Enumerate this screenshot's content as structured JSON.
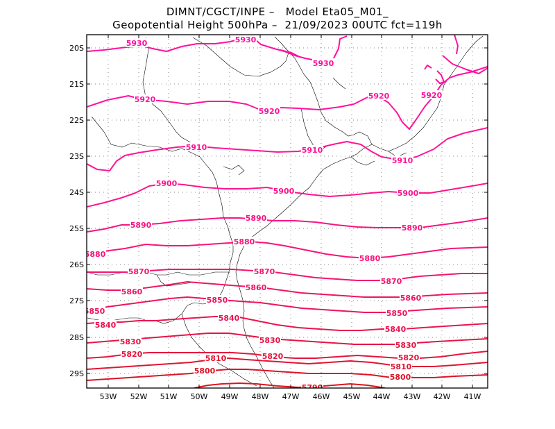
{
  "header": {
    "line1": "DIMNT/CGCT/INPE –   Model Eta05_M01_",
    "line2": "Geopotential Height 500hPa –  21/09/2023 00UTC fct=119h"
  },
  "axes": {
    "lat_labels": [
      "20S",
      "21S",
      "22S",
      "23S",
      "24S",
      "25S",
      "26S",
      "27S",
      "28S",
      "29S"
    ],
    "lon_labels": [
      "53W",
      "52W",
      "51W",
      "50W",
      "49W",
      "48W",
      "47W",
      "46W",
      "45W",
      "44W",
      "43W",
      "42W",
      "41W"
    ]
  },
  "contours": [
    {
      "value": 5930,
      "label": "5930",
      "color": "#ff0fa0"
    },
    {
      "value": 5920,
      "label": "5920",
      "color": "#ff12a0"
    },
    {
      "value": 5910,
      "label": "5910",
      "color": "#ff1496"
    },
    {
      "value": 5900,
      "label": "5900",
      "color": "#ff148c"
    },
    {
      "value": 5890,
      "label": "5890",
      "color": "#f81482"
    },
    {
      "value": 5880,
      "label": "5880",
      "color": "#f81478"
    },
    {
      "value": 5870,
      "label": "5870",
      "color": "#f5146e"
    },
    {
      "value": 5860,
      "label": "5860",
      "color": "#f01464"
    },
    {
      "value": 5850,
      "label": "5850",
      "color": "#f0145a"
    },
    {
      "value": 5840,
      "label": "5840",
      "color": "#eb1450"
    },
    {
      "value": 5830,
      "label": "5830",
      "color": "#e61446"
    },
    {
      "value": 5820,
      "label": "5820",
      "color": "#e6143c"
    },
    {
      "value": 5810,
      "label": "5810",
      "color": "#e11432"
    },
    {
      "value": 5800,
      "label": "5800",
      "color": "#dc1428"
    },
    {
      "value": 5790,
      "label": "5790",
      "color": "#dc141e"
    }
  ]
}
